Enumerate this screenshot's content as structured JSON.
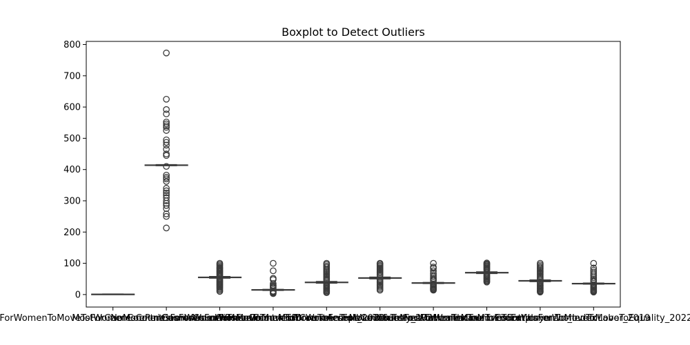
{
  "chart_data": {
    "type": "boxplot",
    "title": "Boxplot to Detect Outliers",
    "xlabel": "",
    "ylabel": "",
    "ylim": [
      -40,
      810
    ],
    "yticks": [
      0,
      100,
      200,
      300,
      400,
      500,
      600,
      700,
      800
    ],
    "grid": false,
    "legend": "none",
    "colors": {
      "box": "#1f77b4",
      "line": "#3b3b3b"
    },
    "categories": [
      "CountriesForWomenToMoveToForGamesCountriesForWomenToMoveTo",
      "MostWomenCountriesForWomenToMoveTo",
      "NoMorePenCountriesForWomenToMoveToDiverse",
      "GamesCountriesForWomenToMoveToAccept_2020",
      "WomenCountriesForWomenToMoveToSafety_2021",
      "MostCountriesForWomenToMoveToHealthcare",
      "FemaleCountriesForWomenToMoveToEducation",
      "CountriesForWomenToMoveToEmployment_Index",
      "WomenCountriesForWomenToMoveToLabor_2019",
      "CountriesForWomenToMoveToEquality_2022"
    ],
    "boxes": [
      {
        "median": 1,
        "q1": 0.5,
        "q3": 1.5,
        "whislo": 0,
        "whishi": 2,
        "fliers": []
      },
      {
        "median": 414,
        "q1": 413,
        "q3": 415,
        "whislo": 412,
        "whishi": 416,
        "fliers": [
          773,
          625,
          592,
          578,
          552,
          546,
          540,
          535,
          525,
          495,
          487,
          478,
          465,
          450,
          445,
          410,
          382,
          375,
          370,
          362,
          340,
          332,
          325,
          318,
          310,
          300,
          292,
          285,
          275,
          258,
          250,
          213
        ]
      },
      {
        "median": 55,
        "q1": 54,
        "q3": 56,
        "whislo": 52,
        "whishi": 58,
        "fliers": [
          100,
          96,
          92,
          88,
          85,
          82,
          79,
          76,
          73,
          70,
          67,
          64,
          61,
          49,
          46,
          43,
          40,
          37,
          34,
          31,
          28,
          25,
          22,
          18,
          14,
          10
        ]
      },
      {
        "median": 15,
        "q1": 14,
        "q3": 16,
        "whislo": 13,
        "whishi": 17,
        "fliers": [
          100,
          76,
          52,
          48,
          35,
          30,
          27,
          24,
          21,
          11,
          9,
          7,
          5,
          3
        ]
      },
      {
        "median": 39,
        "q1": 38,
        "q3": 40,
        "whislo": 36,
        "whishi": 42,
        "fliers": [
          100,
          96,
          91,
          87,
          82,
          78,
          74,
          70,
          66,
          62,
          58,
          54,
          50,
          46,
          33,
          30,
          27,
          24,
          21,
          18,
          15,
          12,
          9,
          6
        ]
      },
      {
        "median": 53,
        "q1": 52,
        "q3": 54,
        "whislo": 50,
        "whishi": 56,
        "fliers": [
          100,
          97,
          93,
          89,
          85,
          81,
          77,
          73,
          69,
          65,
          61,
          47,
          43,
          39,
          35,
          31,
          27,
          23,
          18,
          14
        ]
      },
      {
        "median": 37,
        "q1": 36,
        "q3": 38,
        "whislo": 35,
        "whishi": 39,
        "fliers": [
          100,
          88,
          84,
          76,
          68,
          62,
          57,
          52,
          48,
          44,
          32,
          29,
          26,
          23,
          20,
          18,
          16,
          14
        ]
      },
      {
        "median": 70,
        "q1": 69,
        "q3": 71,
        "whislo": 67,
        "whishi": 73,
        "fliers": [
          101,
          98,
          95,
          92,
          89,
          86,
          83,
          80,
          77,
          64,
          61,
          58,
          55,
          52,
          49,
          46,
          43,
          40
        ]
      },
      {
        "median": 44,
        "q1": 43,
        "q3": 45,
        "whislo": 41,
        "whishi": 47,
        "fliers": [
          100,
          95,
          90,
          86,
          82,
          78,
          74,
          70,
          66,
          62,
          58,
          54,
          50,
          38,
          34,
          30,
          27,
          24,
          21,
          18,
          15,
          12,
          10,
          8
        ]
      },
      {
        "median": 35,
        "q1": 34,
        "q3": 36,
        "whislo": 33,
        "whishi": 37,
        "fliers": [
          100,
          85,
          78,
          72,
          66,
          60,
          54,
          49,
          45,
          41,
          30,
          26,
          23,
          20,
          17,
          14,
          12,
          10,
          8
        ]
      }
    ]
  }
}
